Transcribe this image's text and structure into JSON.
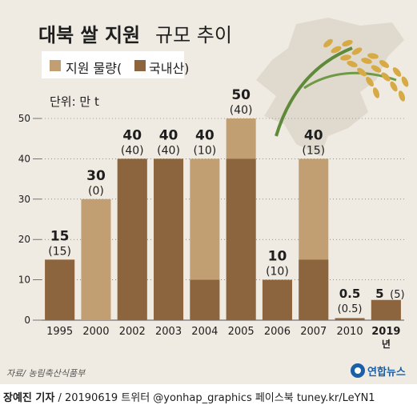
{
  "title": {
    "main": "대북 쌀 지원",
    "sub": "규모 추이"
  },
  "unit": "단위: 만 t",
  "colors": {
    "background": "#efebe2",
    "aid": "#c29f72",
    "domestic": "#8c643d",
    "text": "#1e1e1e",
    "axis": "#555555"
  },
  "chart_data": {
    "type": "bar",
    "categories": [
      "1995",
      "2000",
      "2002",
      "2003",
      "2004",
      "2005",
      "2006",
      "2007",
      "2010",
      "2019"
    ],
    "x_unit_suffix": "년",
    "series": [
      {
        "name": "지원 물량",
        "values": [
          15,
          30,
          40,
          40,
          40,
          50,
          10,
          40,
          0.5,
          5
        ],
        "labels": [
          "15",
          "30",
          "40",
          "40",
          "40",
          "50",
          "10",
          "40",
          "0.5",
          "5"
        ]
      },
      {
        "name": "국내산",
        "values": [
          15,
          0,
          40,
          40,
          10,
          40,
          10,
          15,
          0.5,
          5
        ],
        "labels": [
          "(15)",
          "(0)",
          "(40)",
          "(40)",
          "(10)",
          "(40)",
          "(10)",
          "(15)",
          "(0.5)",
          "(5)"
        ]
      }
    ],
    "yticks": [
      0,
      10,
      20,
      30,
      40,
      50
    ],
    "ylim": [
      0,
      50
    ],
    "grid": true,
    "legend_position": "top-left",
    "legend": [
      {
        "label": "지원 물량(",
        "color": "#c29f72"
      },
      {
        "label": "국내산)",
        "color": "#8c643d"
      }
    ]
  },
  "source": "자료/ 농림축산식품부",
  "logo_text": "연합뉴스",
  "credit": {
    "author": "장예진 기자",
    "rest": " / 20190619 트위터 @yonhap_graphics  페이스북 tuney.kr/LeYN1"
  }
}
